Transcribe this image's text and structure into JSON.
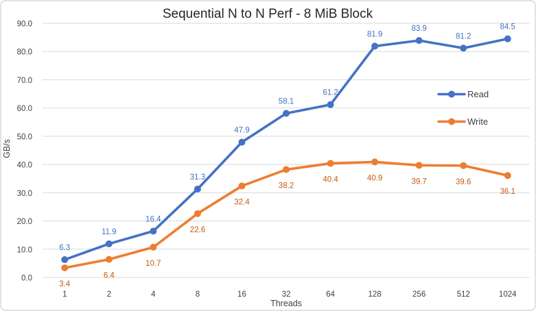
{
  "chart_data": {
    "type": "line",
    "title": "Sequential N to N Perf - 8 MiB Block",
    "xlabel": "Threads",
    "ylabel": "GB/s",
    "categories": [
      "1",
      "2",
      "4",
      "8",
      "16",
      "32",
      "64",
      "128",
      "256",
      "512",
      "1024"
    ],
    "series": [
      {
        "name": "Read",
        "values": [
          6.3,
          11.9,
          16.4,
          31.3,
          47.9,
          58.1,
          61.2,
          81.9,
          83.9,
          81.2,
          84.5
        ],
        "color": "#4472C4",
        "label_color": "#4472C4",
        "label_position": "above"
      },
      {
        "name": "Write",
        "values": [
          3.4,
          6.4,
          10.7,
          22.6,
          32.4,
          38.2,
          40.4,
          40.9,
          39.7,
          39.6,
          36.1
        ],
        "color": "#ED7D31",
        "label_color": "#C55A11",
        "label_position": "below"
      }
    ],
    "ylim": [
      0,
      90
    ],
    "yticks": [
      "0.0",
      "10.0",
      "20.0",
      "30.0",
      "40.0",
      "50.0",
      "60.0",
      "70.0",
      "80.0",
      "90.0"
    ],
    "grid": true,
    "data_labels": true,
    "legend": {
      "position": "inside-right",
      "entries": [
        "Read",
        "Write"
      ]
    }
  },
  "style": {
    "grid_color": "#D9D9D9",
    "border_color": "#D9D9D9",
    "axis_text_color": "#404040",
    "title_color": "#262626",
    "background": "#FFFFFF"
  }
}
